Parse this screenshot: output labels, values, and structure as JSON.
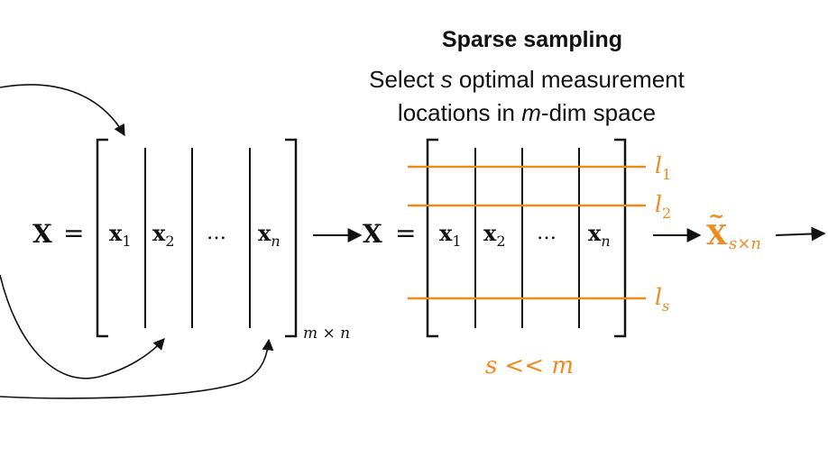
{
  "title": "Sparse sampling",
  "subtitle": {
    "line1_a": "Select ",
    "line1_var": "s",
    "line1_b": " optimal measurement",
    "line2_a": "locations in ",
    "line2_var": "m",
    "line2_b": "-dim space"
  },
  "left_matrix": {
    "lhs": "X",
    "equals": "=",
    "columns": [
      {
        "base": "x",
        "sub": "1"
      },
      {
        "base": "x",
        "sub": "2"
      },
      {
        "base": "…",
        "sub": ""
      },
      {
        "base": "x",
        "sub": "n"
      }
    ],
    "dims": "m × n"
  },
  "right_matrix": {
    "lhs": "X",
    "equals": "=",
    "columns": [
      {
        "base": "x",
        "sub": "1"
      },
      {
        "base": "x",
        "sub": "2"
      },
      {
        "base": "…",
        "sub": ""
      },
      {
        "base": "x",
        "sub": "n"
      }
    ],
    "rows": [
      {
        "base": "l",
        "sub": "1"
      },
      {
        "base": "l",
        "sub": "2"
      },
      {
        "base": "l",
        "sub": "s"
      }
    ],
    "condition": "s << m"
  },
  "output": {
    "base": "X",
    "tilde": "~",
    "sub": "s×n"
  },
  "colors": {
    "ink": "#111111",
    "accent": "#f08a1d"
  }
}
